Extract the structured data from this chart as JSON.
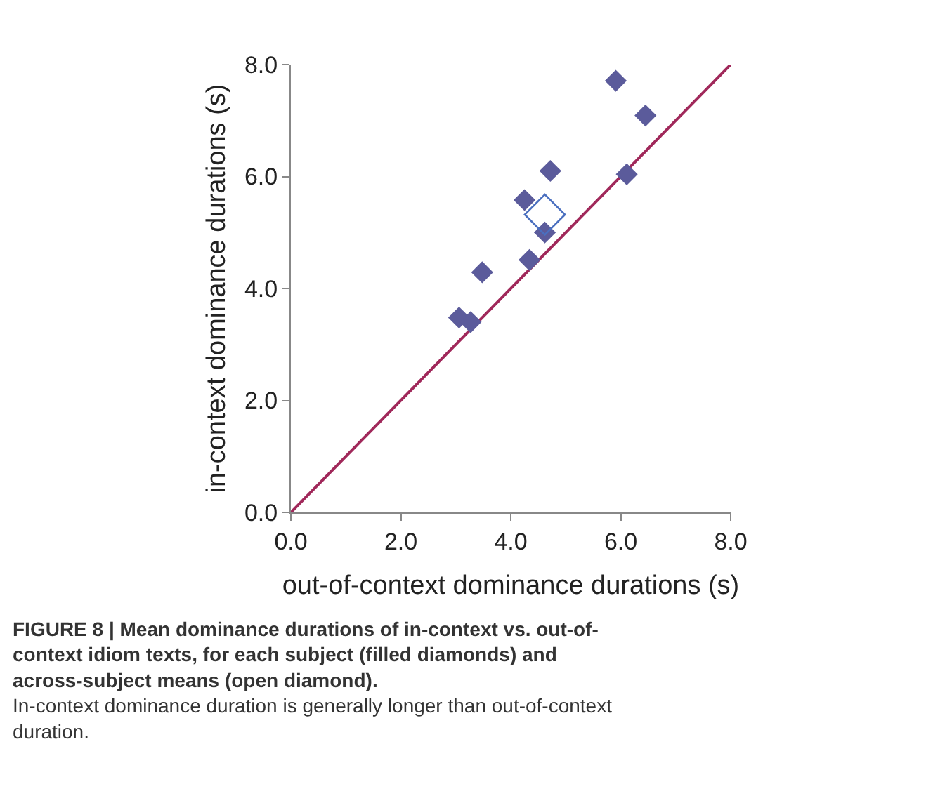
{
  "chart_data": {
    "type": "scatter",
    "xlabel": "out-of-context dominance durations (s)",
    "ylabel": "in-context dominance durations (s)",
    "xlim": [
      0,
      8
    ],
    "ylim": [
      0,
      8
    ],
    "xticks": [
      {
        "value": 0,
        "label": "0.0"
      },
      {
        "value": 2,
        "label": "2.0"
      },
      {
        "value": 4,
        "label": "4.0"
      },
      {
        "value": 6,
        "label": "6.0"
      },
      {
        "value": 8,
        "label": "8.0"
      }
    ],
    "yticks": [
      {
        "value": 0,
        "label": "0.0"
      },
      {
        "value": 2,
        "label": "2.0"
      },
      {
        "value": 4,
        "label": "4.0"
      },
      {
        "value": 6,
        "label": "6.0"
      },
      {
        "value": 8,
        "label": "8.0"
      }
    ],
    "series": [
      {
        "type": "line",
        "marker": "none",
        "color": "#a0285a",
        "x": [
          0,
          8
        ],
        "values": [
          0,
          8
        ]
      },
      {
        "marker": "diamond",
        "color": "#5b5b9b",
        "x": [
          5.91,
          6.45,
          6.11,
          4.72,
          4.25,
          4.62,
          4.34,
          3.48,
          3.06,
          3.27
        ],
        "values": [
          7.71,
          7.09,
          6.04,
          6.1,
          5.58,
          5.0,
          4.51,
          4.29,
          3.48,
          3.4
        ]
      },
      {
        "marker": "diamond",
        "color": "#4a6fbf",
        "x": [
          4.62
        ],
        "values": [
          5.32
        ]
      }
    ],
    "annotations": [
      "FIGURE 8 | Mean dominance durations of in-context vs. out-of-context idiom texts, for each subject (filled diamonds) and across-subject means (open diamond).",
      "In-context dominance duration is generally longer than out-of-context duration."
    ]
  }
}
